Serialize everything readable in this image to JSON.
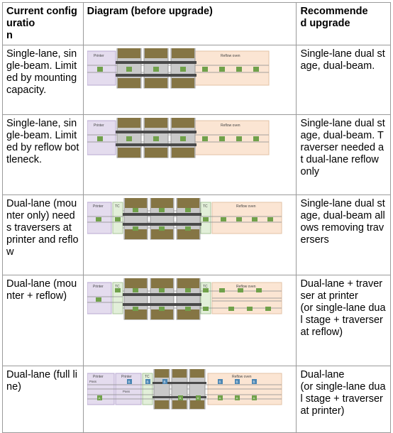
{
  "headers": {
    "config": "Current configuratio\nn",
    "diagram": "Diagram (before upgrade)",
    "upgrade": "Recommende\nd upgrade"
  },
  "rows": [
    {
      "config": "Single-lane, single-beam. Limited by mounting capacity.",
      "upgrade": "Single-lane dual stage, dual-beam.",
      "diagram": {
        "labels": [
          "Printer",
          "Reflow oven"
        ]
      }
    },
    {
      "config": "Single-lane, single-beam. Limited by reflow bottleneck.",
      "upgrade": "Single-lane dual stage, dual-beam. Traverser needed at dual-lane reflow only",
      "diagram": {
        "labels": [
          "Printer",
          "Reflow oven"
        ]
      }
    },
    {
      "config": "Dual-lane (mounter only) needs traversers at printer and reflow",
      "upgrade": "Single-lane dual stage, dual-beam allows removing traversers",
      "diagram": {
        "labels": [
          "Printer",
          "TC",
          "TC",
          "Reflow oven"
        ]
      }
    },
    {
      "config": "Dual-lane (mounter + reflow)",
      "upgrade": "Dual-lane + traverser at printer\n(or single-lane dual stage + traverser at reflow)",
      "diagram": {
        "labels": [
          "Printer",
          "TC",
          "TC",
          "Reflow oven"
        ]
      }
    },
    {
      "config": "Dual-lane (full line)",
      "upgrade": "Dual-lane\n(or single-lane dual stage + traverser at printer)",
      "diagram": {
        "labels": [
          "Printer",
          "Printer",
          "TC",
          "Reflow oven",
          "Pass",
          "Pass",
          "B",
          "B",
          "B",
          "B",
          "B",
          "B",
          "A",
          "A",
          "A",
          "A",
          "A",
          "A"
        ]
      }
    }
  ],
  "colors": {
    "printer_fill": "#e4dcee",
    "oven_fill": "#fbe5d3",
    "tc_fill": "#e2efd9",
    "mounter_fill": "#c9c9c9",
    "head_fill": "#857544",
    "beam_fill": "#4a4a4a",
    "pcb_green": "#70a14a",
    "pcb_blue": "#4a86b4",
    "rail": "#8a8a8a"
  }
}
